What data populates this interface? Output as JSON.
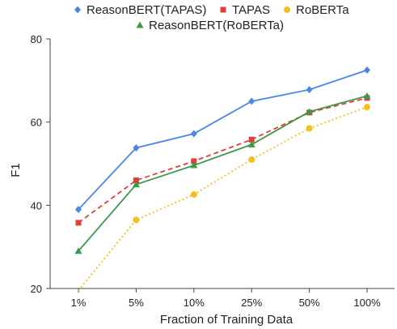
{
  "chart_data": {
    "type": "line",
    "xlabel": "Fraction of Training Data",
    "ylabel": "F1",
    "categories": [
      "1%",
      "5%",
      "10%",
      "25%",
      "50%",
      "100%"
    ],
    "ylim": [
      20,
      80
    ],
    "yticks": [
      20,
      40,
      60,
      80
    ],
    "grid": false,
    "legend_position": "top",
    "series": [
      {
        "name": "ReasonBERT(TAPAS)",
        "color": "#4a86e8",
        "marker": "diamond",
        "line_style": "solid",
        "values": [
          39.0,
          53.8,
          57.2,
          65.0,
          67.8,
          72.5
        ]
      },
      {
        "name": "TAPAS",
        "color": "#e0403a",
        "marker": "square",
        "line_style": "dashed",
        "values": [
          35.8,
          46.0,
          50.6,
          55.8,
          62.3,
          65.8
        ]
      },
      {
        "name": "RoBERTa",
        "color": "#f5c01f",
        "marker": "circle",
        "line_style": "dotted",
        "values": [
          19.5,
          36.5,
          42.6,
          51.0,
          58.5,
          63.6
        ]
      },
      {
        "name": "ReasonBERT(RoBERTa)",
        "color": "#3a9a4a",
        "marker": "triangle",
        "line_style": "solid",
        "values": [
          29.0,
          45.0,
          49.6,
          54.6,
          62.5,
          66.3
        ]
      }
    ]
  }
}
